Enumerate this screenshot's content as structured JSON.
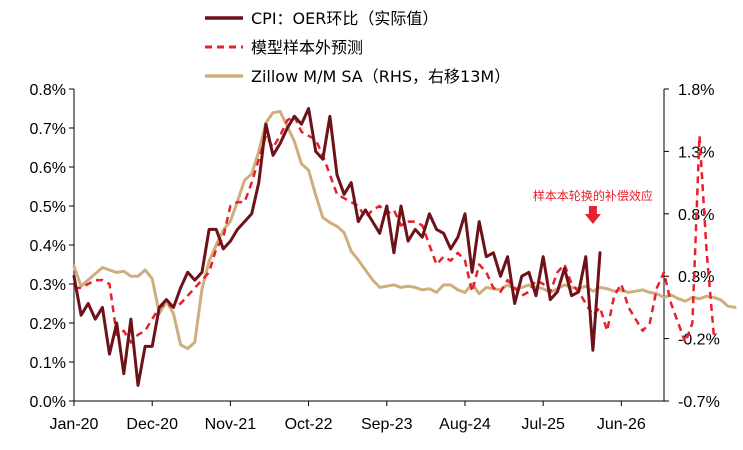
{
  "chart_data": {
    "type": "line",
    "title": "",
    "x_ticks": [
      "Jan-20",
      "Dec-20",
      "Nov-21",
      "Oct-22",
      "Sep-23",
      "Aug-24",
      "Jul-25",
      "Jun-26"
    ],
    "x_tick_months": [
      "2020-01",
      "2020-12",
      "2021-11",
      "2022-10",
      "2023-09",
      "2024-08",
      "2025-07",
      "2026-06"
    ],
    "x_range": [
      "2020-01",
      "2026-12"
    ],
    "y_left": {
      "range": [
        0.0,
        0.8
      ],
      "ticks": [
        0.0,
        0.1,
        0.2,
        0.3,
        0.4,
        0.5,
        0.6,
        0.7,
        0.8
      ],
      "tick_labels": [
        "0.0%",
        "0.1%",
        "0.2%",
        "0.3%",
        "0.4%",
        "0.5%",
        "0.6%",
        "0.7%",
        "0.8%"
      ]
    },
    "y_right": {
      "range": [
        -0.7,
        1.8
      ],
      "ticks": [
        -0.7,
        -0.2,
        0.3,
        0.8,
        1.3,
        1.8
      ],
      "tick_labels": [
        "-0.7%",
        "-0.2%",
        "0.3%",
        "0.8%",
        "1.3%",
        "1.8%"
      ]
    },
    "legend": {
      "position": "top",
      "entries": [
        {
          "label": "CPI：OER环比（实际值）",
          "series": "cpi_oer"
        },
        {
          "label": "模型样本外预测",
          "series": "forecast"
        },
        {
          "label": "Zillow M/M SA（RHS，右移13M）",
          "series": "zillow"
        }
      ]
    },
    "annotation": {
      "text": "样本本轮换的补偿效应",
      "x": "2026-02",
      "color": "#e8202a"
    },
    "colors": {
      "cpi_oer": "#6e1219",
      "forecast": "#e8202a",
      "zillow": "#cfae7e"
    },
    "series": {
      "cpi_oer": {
        "axis": "left",
        "style": "solid",
        "start": "2020-01",
        "values": [
          0.32,
          0.22,
          0.25,
          0.21,
          0.24,
          0.12,
          0.2,
          0.07,
          0.21,
          0.04,
          0.14,
          0.14,
          0.24,
          0.26,
          0.24,
          0.29,
          0.33,
          0.31,
          0.33,
          0.44,
          0.44,
          0.39,
          0.41,
          0.44,
          0.46,
          0.48,
          0.56,
          0.71,
          0.63,
          0.66,
          0.7,
          0.73,
          0.71,
          0.75,
          0.64,
          0.62,
          0.73,
          0.58,
          0.53,
          0.56,
          0.46,
          0.49,
          0.46,
          0.43,
          0.5,
          0.38,
          0.5,
          0.41,
          0.44,
          0.42,
          0.48,
          0.44,
          0.43,
          0.39,
          0.42,
          0.48,
          0.33,
          0.46,
          0.37,
          0.38,
          0.32,
          0.37,
          0.25,
          0.32,
          0.33,
          0.27,
          0.37,
          0.26,
          0.28,
          0.34,
          0.27,
          0.28,
          0.37,
          0.13,
          0.38
        ]
      },
      "forecast": {
        "axis": "left",
        "style": "dashed",
        "start": "2020-01",
        "values": [
          0.29,
          0.29,
          0.3,
          0.31,
          0.31,
          0.3,
          0.17,
          0.18,
          0.15,
          0.17,
          0.18,
          0.21,
          0.24,
          0.25,
          0.24,
          0.25,
          0.27,
          0.29,
          0.31,
          0.33,
          0.39,
          0.42,
          0.5,
          0.51,
          0.51,
          0.56,
          0.62,
          0.68,
          0.65,
          0.68,
          0.72,
          0.73,
          0.69,
          0.68,
          0.67,
          0.63,
          0.58,
          0.53,
          0.52,
          0.51,
          0.5,
          0.47,
          0.49,
          0.5,
          0.48,
          0.49,
          0.45,
          0.46,
          0.46,
          0.45,
          0.4,
          0.35,
          0.37,
          0.36,
          0.38,
          0.36,
          0.28,
          0.35,
          0.33,
          0.29,
          0.28,
          0.31,
          0.29,
          0.27,
          0.28,
          0.31,
          0.3,
          0.28,
          0.33,
          0.35,
          0.3,
          0.28,
          0.25,
          0.22,
          0.24,
          0.18,
          0.27,
          0.3,
          0.24,
          0.21,
          0.18,
          0.2,
          0.29,
          0.33,
          0.25,
          0.2,
          0.15,
          0.2,
          0.68,
          0.38,
          0.17
        ]
      },
      "zillow": {
        "axis": "right",
        "style": "solid",
        "start": "2020-01",
        "values": [
          0.38,
          0.22,
          0.27,
          0.32,
          0.37,
          0.35,
          0.33,
          0.34,
          0.3,
          0.3,
          0.35,
          0.28,
          0.0,
          0.1,
          0.0,
          -0.25,
          -0.28,
          -0.23,
          0.2,
          0.42,
          0.55,
          0.67,
          0.74,
          0.9,
          1.07,
          1.12,
          1.3,
          1.53,
          1.61,
          1.62,
          1.5,
          1.38,
          1.2,
          1.15,
          0.95,
          0.77,
          0.73,
          0.7,
          0.65,
          0.5,
          0.43,
          0.35,
          0.27,
          0.21,
          0.22,
          0.23,
          0.21,
          0.22,
          0.21,
          0.19,
          0.2,
          0.17,
          0.23,
          0.23,
          0.19,
          0.17,
          0.24,
          0.16,
          0.21,
          0.2,
          0.19,
          0.23,
          0.2,
          0.21,
          0.23,
          0.21,
          0.2,
          0.17,
          0.2,
          0.23,
          0.21,
          0.2,
          0.22,
          0.18,
          0.21,
          0.2,
          0.18,
          0.19,
          0.17,
          0.18,
          0.19,
          0.17,
          0.16,
          0.13,
          0.15,
          0.12,
          0.1,
          0.13,
          0.12,
          0.14,
          0.13,
          0.11,
          0.06,
          0.05
        ]
      }
    }
  }
}
